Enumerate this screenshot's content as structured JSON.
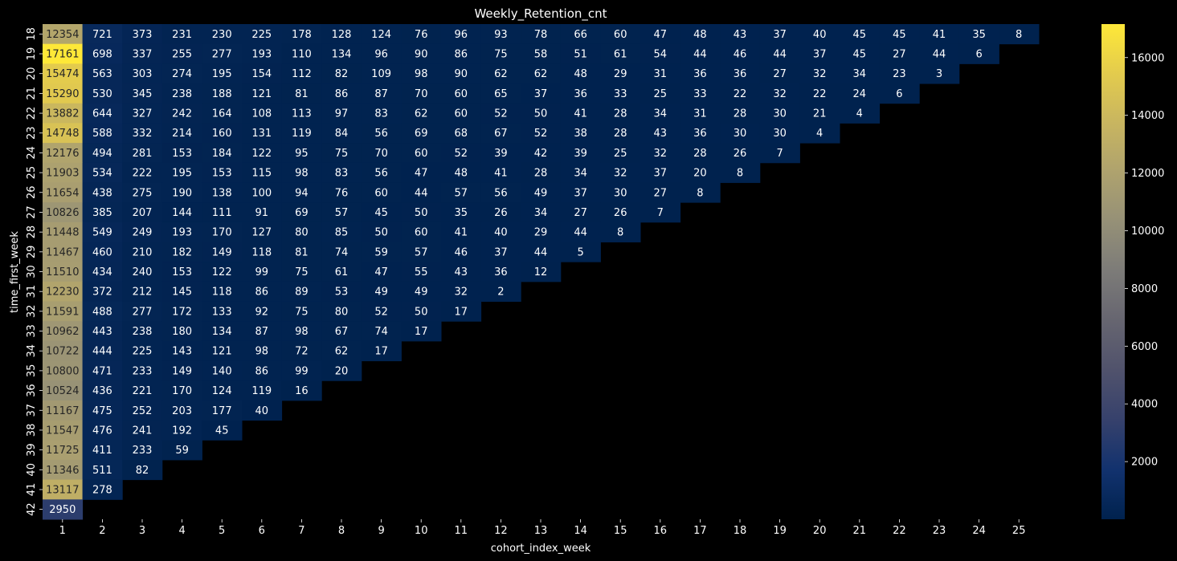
{
  "chart_data": {
    "type": "heatmap",
    "title": "Weekly_Retention_cnt",
    "xlabel": "cohort_index_week",
    "ylabel": "time_first_week",
    "x_categories": [
      "1",
      "2",
      "3",
      "4",
      "5",
      "6",
      "7",
      "8",
      "9",
      "10",
      "11",
      "12",
      "13",
      "14",
      "15",
      "16",
      "17",
      "18",
      "19",
      "20",
      "21",
      "22",
      "23",
      "24",
      "25"
    ],
    "y_categories": [
      "18",
      "19",
      "20",
      "21",
      "22",
      "23",
      "24",
      "25",
      "26",
      "27",
      "28",
      "29",
      "30",
      "31",
      "32",
      "33",
      "34",
      "35",
      "36",
      "37",
      "38",
      "39",
      "40",
      "41",
      "42"
    ],
    "values": [
      [
        12354,
        721,
        373,
        231,
        230,
        225,
        178,
        128,
        124,
        76,
        96,
        93,
        78,
        66,
        60,
        47,
        48,
        43,
        37,
        40,
        45,
        45,
        41,
        35,
        8
      ],
      [
        17161,
        698,
        337,
        255,
        277,
        193,
        110,
        134,
        96,
        90,
        86,
        75,
        58,
        51,
        61,
        54,
        44,
        46,
        44,
        37,
        45,
        27,
        44,
        6
      ],
      [
        15474,
        563,
        303,
        274,
        195,
        154,
        112,
        82,
        109,
        98,
        90,
        62,
        62,
        48,
        29,
        31,
        36,
        36,
        27,
        32,
        34,
        23,
        3
      ],
      [
        15290,
        530,
        345,
        238,
        188,
        121,
        81,
        86,
        87,
        70,
        60,
        65,
        37,
        36,
        33,
        25,
        33,
        22,
        32,
        22,
        24,
        6
      ],
      [
        13882,
        644,
        327,
        242,
        164,
        108,
        113,
        97,
        83,
        62,
        60,
        52,
        50,
        41,
        28,
        34,
        31,
        28,
        30,
        21,
        4
      ],
      [
        14748,
        588,
        332,
        214,
        160,
        131,
        119,
        84,
        56,
        69,
        68,
        67,
        52,
        38,
        28,
        43,
        36,
        30,
        30,
        4
      ],
      [
        12176,
        494,
        281,
        153,
        184,
        122,
        95,
        75,
        70,
        60,
        52,
        39,
        42,
        39,
        25,
        32,
        28,
        26,
        7
      ],
      [
        11903,
        534,
        222,
        195,
        153,
        115,
        98,
        83,
        56,
        47,
        48,
        41,
        28,
        34,
        32,
        37,
        20,
        8
      ],
      [
        11654,
        438,
        275,
        190,
        138,
        100,
        94,
        76,
        60,
        44,
        57,
        56,
        49,
        37,
        30,
        27,
        8
      ],
      [
        10826,
        385,
        207,
        144,
        111,
        91,
        69,
        57,
        45,
        50,
        35,
        26,
        34,
        27,
        26,
        7
      ],
      [
        11448,
        549,
        249,
        193,
        170,
        127,
        80,
        85,
        50,
        60,
        41,
        40,
        29,
        44,
        8
      ],
      [
        11467,
        460,
        210,
        182,
        149,
        118,
        81,
        74,
        59,
        57,
        46,
        37,
        44,
        5
      ],
      [
        11510,
        434,
        240,
        153,
        122,
        99,
        75,
        61,
        47,
        55,
        43,
        36,
        12
      ],
      [
        12230,
        372,
        212,
        145,
        118,
        86,
        89,
        53,
        49,
        49,
        32,
        2
      ],
      [
        11591,
        488,
        277,
        172,
        133,
        92,
        75,
        80,
        52,
        50,
        17
      ],
      [
        10962,
        443,
        238,
        180,
        134,
        87,
        98,
        67,
        74,
        17
      ],
      [
        10722,
        444,
        225,
        143,
        121,
        98,
        72,
        62,
        17
      ],
      [
        10800,
        471,
        233,
        149,
        140,
        86,
        99,
        20
      ],
      [
        10524,
        436,
        221,
        170,
        124,
        119,
        16
      ],
      [
        11167,
        475,
        252,
        203,
        177,
        40
      ],
      [
        11547,
        476,
        241,
        192,
        45
      ],
      [
        11725,
        411,
        233,
        59
      ],
      [
        11346,
        511,
        82
      ],
      [
        13117,
        278
      ],
      [
        2950
      ]
    ],
    "colormap": "cividis",
    "color_range": [
      2,
      17161
    ],
    "colorbar": {
      "ticks": [
        "2000",
        "4000",
        "6000",
        "8000",
        "10000",
        "12000",
        "14000",
        "16000"
      ],
      "tick_values": [
        2000,
        4000,
        6000,
        8000,
        10000,
        12000,
        14000,
        16000
      ]
    },
    "background": "#000000",
    "text_color": "#ffffff"
  }
}
